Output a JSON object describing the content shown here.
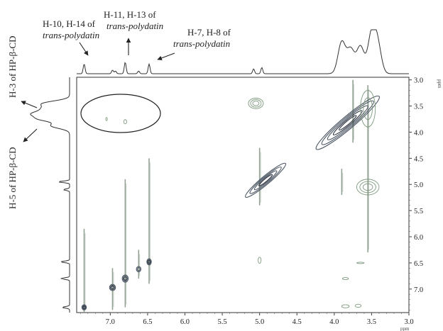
{
  "chart_data": {
    "type": "heatmap",
    "subtype": "2D NMR (ROESY) contour plot with 1D projections",
    "x_axis": {
      "unit_label": "ppm",
      "range": [
        7.45,
        3.0
      ],
      "ticks": [
        "7.0",
        "6.5",
        "6.0",
        "5.5",
        "5.0",
        "4.5",
        "4.0",
        "3.5",
        "3.0"
      ],
      "tick_values": [
        7.0,
        6.5,
        6.0,
        5.5,
        5.0,
        4.5,
        4.0,
        3.5,
        3.0
      ]
    },
    "y_axis": {
      "unit_label": "ppm",
      "range": [
        2.95,
        7.45
      ],
      "ticks": [
        "3.0",
        "3.5",
        "4.0",
        "4.5",
        "5.0",
        "5.5",
        "6.0",
        "6.5",
        "7.0"
      ],
      "tick_values": [
        3.0,
        3.5,
        4.0,
        4.5,
        5.0,
        5.5,
        6.0,
        6.5,
        7.0
      ]
    },
    "top_spectrum_peaks": [
      {
        "ppm": 7.35,
        "height": 0.22
      },
      {
        "ppm": 6.97,
        "height": 0.08
      },
      {
        "ppm": 6.93,
        "height": 0.06
      },
      {
        "ppm": 6.8,
        "height": 0.26
      },
      {
        "ppm": 6.62,
        "height": 0.06
      },
      {
        "ppm": 6.48,
        "height": 0.22
      },
      {
        "ppm": 5.08,
        "height": 0.11
      },
      {
        "ppm": 4.97,
        "height": 0.14
      },
      {
        "ppm": 3.9,
        "height": 0.72
      },
      {
        "ppm": 3.78,
        "height": 0.55
      },
      {
        "ppm": 3.65,
        "height": 0.62
      },
      {
        "ppm": 3.5,
        "height": 0.88
      },
      {
        "ppm": 3.42,
        "height": 0.65
      }
    ],
    "left_spectrum_peaks": [
      {
        "ppm": 3.45,
        "height": 0.62
      },
      {
        "ppm": 3.55,
        "height": 0.55
      },
      {
        "ppm": 3.65,
        "height": 0.82
      },
      {
        "ppm": 3.75,
        "height": 0.7
      },
      {
        "ppm": 3.88,
        "height": 0.45
      },
      {
        "ppm": 4.95,
        "height": 0.28
      },
      {
        "ppm": 5.1,
        "height": 0.15
      },
      {
        "ppm": 6.48,
        "height": 0.22
      },
      {
        "ppm": 6.8,
        "height": 0.22
      },
      {
        "ppm": 7.35,
        "height": 0.18
      }
    ],
    "cross_peaks": [
      {
        "x": 3.82,
        "y": 3.82,
        "rx": 0.55,
        "ry": 0.12,
        "rot": -40,
        "levels": 5,
        "dark": true
      },
      {
        "x": 4.92,
        "y": 4.92,
        "rx": 0.35,
        "ry": 0.08,
        "rot": -40,
        "levels": 4,
        "dark": true
      },
      {
        "x": 5.05,
        "y": 3.45,
        "rx": 0.1,
        "ry": 0.1,
        "rot": 0,
        "levels": 3,
        "dark": false
      },
      {
        "x": 3.55,
        "y": 5.05,
        "rx": 0.15,
        "ry": 0.15,
        "rot": 0,
        "levels": 3,
        "dark": false
      },
      {
        "x": 3.55,
        "y": 3.55,
        "rx": 0.1,
        "ry": 0.35,
        "rot": 0,
        "levels": 2,
        "dark": false
      },
      {
        "x": 7.35,
        "y": 7.35,
        "rx": 0.03,
        "ry": 0.05,
        "rot": 0,
        "levels": 3,
        "dark": true
      },
      {
        "x": 6.97,
        "y": 6.97,
        "rx": 0.04,
        "ry": 0.06,
        "rot": 0,
        "levels": 3,
        "dark": true
      },
      {
        "x": 6.8,
        "y": 6.8,
        "rx": 0.04,
        "ry": 0.07,
        "rot": 0,
        "levels": 3,
        "dark": true
      },
      {
        "x": 6.62,
        "y": 6.62,
        "rx": 0.03,
        "ry": 0.05,
        "rot": 0,
        "levels": 2,
        "dark": true
      },
      {
        "x": 6.48,
        "y": 6.48,
        "rx": 0.03,
        "ry": 0.06,
        "rot": 0,
        "levels": 3,
        "dark": true
      },
      {
        "x": 6.8,
        "y": 3.8,
        "rx": 0.02,
        "ry": 0.04,
        "rot": 0,
        "levels": 1,
        "dark": false
      },
      {
        "x": 7.05,
        "y": 3.75,
        "rx": 0.01,
        "ry": 0.03,
        "rot": 0,
        "levels": 1,
        "dark": false
      },
      {
        "x": 5.0,
        "y": 6.45,
        "rx": 0.02,
        "ry": 0.06,
        "rot": 0,
        "levels": 1,
        "dark": false
      },
      {
        "x": 3.85,
        "y": 6.8,
        "rx": 0.04,
        "ry": 0.02,
        "rot": 0,
        "levels": 1,
        "dark": false
      },
      {
        "x": 3.85,
        "y": 7.33,
        "rx": 0.05,
        "ry": 0.03,
        "rot": 0,
        "levels": 1,
        "dark": false
      },
      {
        "x": 3.68,
        "y": 7.32,
        "rx": 0.04,
        "ry": 0.03,
        "rot": 0,
        "levels": 1,
        "dark": false
      },
      {
        "x": 3.65,
        "y": 6.5,
        "rx": 0.05,
        "ry": 0.01,
        "rot": 0,
        "levels": 1,
        "dark": false
      }
    ],
    "vertical_streaks": [
      {
        "x": 7.35,
        "from": 5.85,
        "to": 7.45
      },
      {
        "x": 6.97,
        "from": 6.6,
        "to": 7.4
      },
      {
        "x": 6.8,
        "from": 4.9,
        "to": 7.35
      },
      {
        "x": 6.62,
        "from": 6.25,
        "to": 6.8
      },
      {
        "x": 6.48,
        "from": 4.5,
        "to": 6.9
      },
      {
        "x": 5.0,
        "from": 4.3,
        "to": 5.4
      },
      {
        "x": 3.75,
        "from": 3.0,
        "to": 4.2
      },
      {
        "x": 3.55,
        "from": 3.1,
        "to": 6.3
      },
      {
        "x": 3.9,
        "from": 4.7,
        "to": 5.2
      }
    ],
    "annotations": {
      "top_a_line1": "H-10, H-14 of",
      "top_a_line2": "trans-polydatin",
      "top_b_line1": "H-11, H-13 of",
      "top_b_line2": "trans-polydatin",
      "top_c_line1": "H-7, H-8 of",
      "top_c_line2": "trans-polydatin",
      "left_a": "H-3 of HP-β-CD",
      "left_b": "H-5 of HP-β-CD"
    },
    "grid": false
  }
}
